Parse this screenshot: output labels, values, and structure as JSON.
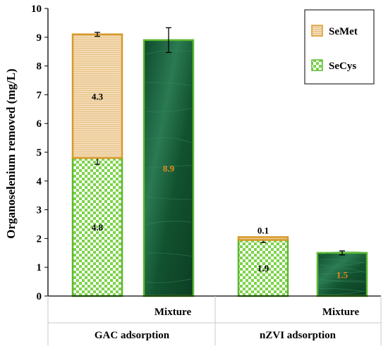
{
  "chart_data": {
    "type": "bar",
    "stacked": true,
    "ylabel": "Organoselenium removed (mg/L)",
    "ylim": [
      0,
      10
    ],
    "yticks": [
      "0",
      "1",
      "2",
      "3",
      "4",
      "5",
      "6",
      "7",
      "8",
      "9",
      "10"
    ],
    "groups": [
      "GAC adsorption",
      "nZVI adsorption"
    ],
    "categories": [
      "",
      "Mixture",
      "",
      "Mixture"
    ],
    "legend": {
      "position": "top-right",
      "entries": [
        {
          "name": "SeMet",
          "color": "#ecc792",
          "border": "#d69a2a"
        },
        {
          "name": "SeCys",
          "color": "#7dd34b",
          "border": "#5cb82c"
        }
      ]
    },
    "bars": [
      {
        "segments": [
          {
            "series": "SeCys",
            "value": 4.8,
            "label": "4.8",
            "err": 0.22
          },
          {
            "series": "SeMet",
            "value": 4.3,
            "label": "4.3",
            "err": 0.07
          }
        ]
      },
      {
        "segments": [
          {
            "series": "Mixture",
            "value": 8.9,
            "label": "8.9",
            "err": 0.43
          }
        ]
      },
      {
        "segments": [
          {
            "series": "SeCys",
            "value": 1.95,
            "label": "1.9",
            "err": 0.09
          },
          {
            "series": "SeMet",
            "value": 0.1,
            "label": "0.1",
            "err": 0
          }
        ]
      },
      {
        "segments": [
          {
            "series": "Mixture",
            "value": 1.5,
            "label": "1.5",
            "err": 0.07
          }
        ]
      }
    ],
    "colors": {
      "semet": "#ecc792",
      "semet_border": "#d69a2a",
      "secys": "#7dd34b",
      "secys_border": "#5cb82c",
      "mixture": "#1b5e3c",
      "mixture_border": "#5cb82c",
      "mixture_label": "#e48a1c"
    }
  }
}
